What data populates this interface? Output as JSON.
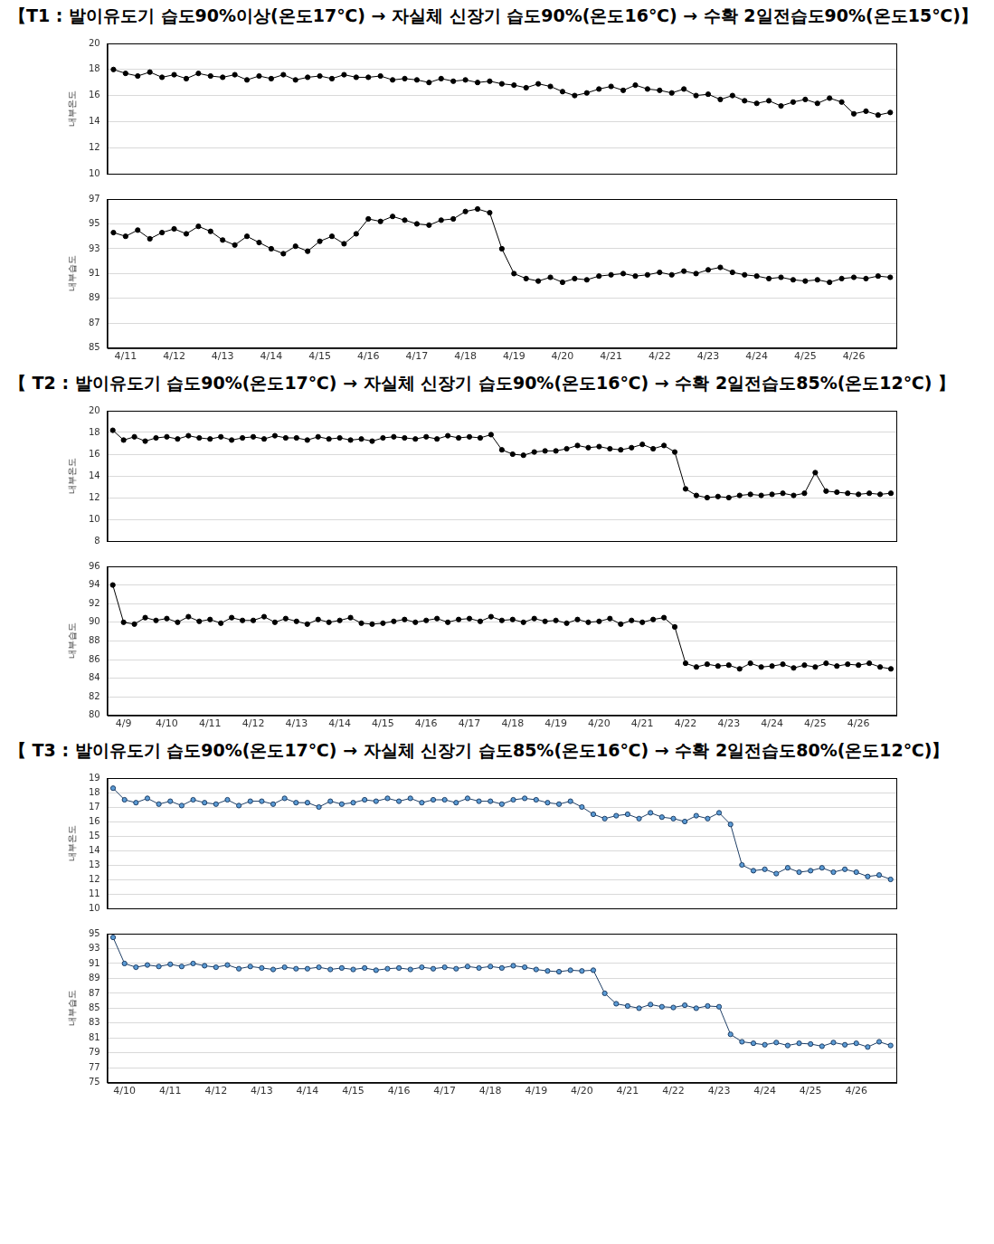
{
  "chart_data": [
    {
      "type": "line",
      "title": "【T1 : 발이유도기 습도90%이상(온도17℃) → 자실체 신장기 습도90%(온도16℃) → 수확 2일전습도90%(온도15℃)】",
      "y_label": "내부온도",
      "color": "#000000",
      "marker": "circle",
      "grid": "y",
      "tick_labels": "y",
      "ylim": [
        10,
        20
      ],
      "yticks": [
        10,
        12,
        14,
        16,
        18,
        20
      ],
      "categories": [
        null,
        "4/11",
        null,
        null,
        null,
        "4/12",
        null,
        null,
        null,
        "4/13",
        null,
        null,
        null,
        "4/14",
        null,
        null,
        null,
        "4/15",
        null,
        null,
        null,
        "4/16",
        null,
        null,
        null,
        "4/17",
        null,
        null,
        null,
        "4/18",
        null,
        null,
        null,
        "4/19",
        null,
        null,
        null,
        "4/20",
        null,
        null,
        null,
        "4/21",
        null,
        null,
        null,
        "4/22",
        null,
        null,
        null,
        "4/23",
        null,
        null,
        null,
        "4/24",
        null,
        null,
        null,
        "4/25",
        null,
        null,
        null,
        "4/26",
        null,
        null,
        null
      ],
      "values": [
        18.0,
        17.7,
        17.5,
        17.8,
        17.4,
        17.6,
        17.3,
        17.7,
        17.5,
        17.4,
        17.6,
        17.2,
        17.5,
        17.3,
        17.6,
        17.2,
        17.4,
        17.5,
        17.3,
        17.6,
        17.4,
        17.4,
        17.5,
        17.2,
        17.3,
        17.2,
        17.0,
        17.3,
        17.1,
        17.2,
        17.0,
        17.1,
        16.9,
        16.8,
        16.6,
        16.9,
        16.7,
        16.3,
        16.0,
        16.2,
        16.5,
        16.7,
        16.4,
        16.8,
        16.5,
        16.4,
        16.2,
        16.5,
        16.0,
        16.1,
        15.7,
        16.0,
        15.6,
        15.4,
        15.6,
        15.2,
        15.5,
        15.7,
        15.4,
        15.8,
        15.5,
        14.6,
        14.8,
        14.5,
        14.7
      ]
    },
    {
      "type": "line",
      "y_label": "내부습도",
      "color": "#000000",
      "marker": "circle",
      "grid": "y",
      "ylim": [
        85,
        97
      ],
      "yticks": [
        85,
        87,
        89,
        91,
        93,
        95,
        97
      ],
      "categories": [
        null,
        "4/11",
        null,
        null,
        null,
        "4/12",
        null,
        null,
        null,
        "4/13",
        null,
        null,
        null,
        "4/14",
        null,
        null,
        null,
        "4/15",
        null,
        null,
        null,
        "4/16",
        null,
        null,
        null,
        "4/17",
        null,
        null,
        null,
        "4/18",
        null,
        null,
        null,
        "4/19",
        null,
        null,
        null,
        "4/20",
        null,
        null,
        null,
        "4/21",
        null,
        null,
        null,
        "4/22",
        null,
        null,
        null,
        "4/23",
        null,
        null,
        null,
        "4/24",
        null,
        null,
        null,
        "4/25",
        null,
        null,
        null,
        "4/26",
        null,
        null,
        null
      ],
      "values": [
        94.3,
        94.0,
        94.5,
        93.8,
        94.3,
        94.6,
        94.2,
        94.8,
        94.4,
        93.7,
        93.3,
        94.0,
        93.5,
        93.0,
        92.6,
        93.2,
        92.8,
        93.6,
        94.0,
        93.4,
        94.2,
        95.4,
        95.2,
        95.6,
        95.3,
        95.0,
        94.9,
        95.3,
        95.4,
        96.0,
        96.2,
        95.9,
        93.0,
        91.0,
        90.6,
        90.4,
        90.7,
        90.3,
        90.6,
        90.5,
        90.8,
        90.9,
        91.0,
        90.8,
        90.9,
        91.1,
        90.9,
        91.2,
        91.0,
        91.3,
        91.5,
        91.1,
        90.9,
        90.8,
        90.6,
        90.7,
        90.5,
        90.4,
        90.5,
        90.3,
        90.6,
        90.7,
        90.6,
        90.8,
        90.7
      ]
    },
    {
      "type": "line",
      "title": "【 T2 : 발이유도기 습도90%(온도17℃) → 자실체 신장기 습도90%(온도16℃) → 수확 2일전습도85%(온도12℃) 】",
      "y_label": "내부온도",
      "color": "#000000",
      "marker": "circle",
      "grid": "y",
      "tick_labels": "y",
      "ylim": [
        8,
        20
      ],
      "yticks": [
        8,
        10,
        12,
        14,
        16,
        18,
        20
      ],
      "categories": [
        null,
        "4/9",
        null,
        null,
        null,
        "4/10",
        null,
        null,
        null,
        "4/11",
        null,
        null,
        null,
        "4/12",
        null,
        null,
        null,
        "4/13",
        null,
        null,
        null,
        "4/14",
        null,
        null,
        null,
        "4/15",
        null,
        null,
        null,
        "4/16",
        null,
        null,
        null,
        "4/17",
        null,
        null,
        null,
        "4/18",
        null,
        null,
        null,
        "4/19",
        null,
        null,
        null,
        "4/20",
        null,
        null,
        null,
        "4/21",
        null,
        null,
        null,
        "4/22",
        null,
        null,
        null,
        "4/23",
        null,
        null,
        null,
        "4/24",
        null,
        null,
        null,
        "4/25",
        null,
        null,
        null,
        "4/26",
        null,
        null,
        null
      ],
      "values": [
        18.2,
        17.3,
        17.6,
        17.2,
        17.5,
        17.6,
        17.4,
        17.7,
        17.5,
        17.4,
        17.6,
        17.3,
        17.5,
        17.6,
        17.4,
        17.7,
        17.5,
        17.5,
        17.3,
        17.6,
        17.4,
        17.5,
        17.3,
        17.4,
        17.2,
        17.5,
        17.6,
        17.5,
        17.4,
        17.6,
        17.4,
        17.7,
        17.5,
        17.6,
        17.5,
        17.8,
        16.4,
        16.0,
        15.9,
        16.2,
        16.3,
        16.3,
        16.5,
        16.8,
        16.6,
        16.7,
        16.5,
        16.4,
        16.6,
        16.9,
        16.5,
        16.8,
        16.2,
        12.8,
        12.2,
        12.0,
        12.1,
        12.0,
        12.2,
        12.3,
        12.2,
        12.3,
        12.4,
        12.2,
        12.4,
        14.3,
        12.6,
        12.5,
        12.4,
        12.3,
        12.4,
        12.3,
        12.4
      ]
    },
    {
      "type": "line",
      "y_label": "내부습도",
      "color": "#000000",
      "marker": "circle",
      "grid": "y",
      "ylim": [
        80,
        96
      ],
      "yticks": [
        80,
        82,
        84,
        86,
        88,
        90,
        92,
        94,
        96
      ],
      "categories": [
        null,
        "4/9",
        null,
        null,
        null,
        "4/10",
        null,
        null,
        null,
        "4/11",
        null,
        null,
        null,
        "4/12",
        null,
        null,
        null,
        "4/13",
        null,
        null,
        null,
        "4/14",
        null,
        null,
        null,
        "4/15",
        null,
        null,
        null,
        "4/16",
        null,
        null,
        null,
        "4/17",
        null,
        null,
        null,
        "4/18",
        null,
        null,
        null,
        "4/19",
        null,
        null,
        null,
        "4/20",
        null,
        null,
        null,
        "4/21",
        null,
        null,
        null,
        "4/22",
        null,
        null,
        null,
        "4/23",
        null,
        null,
        null,
        "4/24",
        null,
        null,
        null,
        "4/25",
        null,
        null,
        null,
        "4/26",
        null,
        null,
        null
      ],
      "values": [
        94.0,
        90.0,
        89.8,
        90.5,
        90.2,
        90.4,
        90.0,
        90.6,
        90.1,
        90.3,
        89.9,
        90.5,
        90.2,
        90.2,
        90.6,
        90.0,
        90.4,
        90.1,
        89.8,
        90.3,
        90.0,
        90.2,
        90.5,
        89.9,
        89.8,
        89.9,
        90.1,
        90.3,
        90.0,
        90.2,
        90.4,
        90.0,
        90.3,
        90.4,
        90.1,
        90.6,
        90.2,
        90.3,
        90.0,
        90.4,
        90.1,
        90.2,
        89.9,
        90.3,
        90.0,
        90.1,
        90.4,
        89.8,
        90.2,
        90.0,
        90.3,
        90.5,
        89.5,
        85.6,
        85.2,
        85.5,
        85.3,
        85.4,
        85.0,
        85.6,
        85.2,
        85.3,
        85.5,
        85.1,
        85.4,
        85.2,
        85.6,
        85.3,
        85.5,
        85.4,
        85.6,
        85.2,
        85.0
      ]
    },
    {
      "type": "line",
      "title": "【 T3 : 발이유도기 습도90%(온도17℃) → 자실체 신장기 습도85%(온도16℃) → 수확 2일전습도80%(온도12℃)】",
      "y_label": "내부온도",
      "color": "#5b9bd5",
      "marker": "circle",
      "grid": "y",
      "tick_labels": "y",
      "ylim": [
        10,
        19
      ],
      "yticks": [
        10,
        11,
        12,
        13,
        14,
        15,
        16,
        17,
        18,
        19
      ],
      "categories": [
        null,
        "4/10",
        null,
        null,
        null,
        "4/11",
        null,
        null,
        null,
        "4/12",
        null,
        null,
        null,
        "4/13",
        null,
        null,
        null,
        "4/14",
        null,
        null,
        null,
        "4/15",
        null,
        null,
        null,
        "4/16",
        null,
        null,
        null,
        "4/17",
        null,
        null,
        null,
        "4/18",
        null,
        null,
        null,
        "4/19",
        null,
        null,
        null,
        "4/20",
        null,
        null,
        null,
        "4/21",
        null,
        null,
        null,
        "4/22",
        null,
        null,
        null,
        "4/23",
        null,
        null,
        null,
        "4/24",
        null,
        null,
        null,
        "4/25",
        null,
        null,
        null,
        "4/26",
        null,
        null,
        null
      ],
      "values": [
        18.3,
        17.5,
        17.3,
        17.6,
        17.2,
        17.4,
        17.1,
        17.5,
        17.3,
        17.2,
        17.5,
        17.1,
        17.4,
        17.4,
        17.2,
        17.6,
        17.3,
        17.3,
        17.0,
        17.4,
        17.2,
        17.3,
        17.5,
        17.4,
        17.6,
        17.4,
        17.6,
        17.3,
        17.5,
        17.5,
        17.3,
        17.6,
        17.4,
        17.4,
        17.2,
        17.5,
        17.6,
        17.5,
        17.3,
        17.2,
        17.4,
        17.0,
        16.5,
        16.2,
        16.4,
        16.5,
        16.2,
        16.6,
        16.3,
        16.2,
        16.0,
        16.4,
        16.2,
        16.6,
        15.8,
        13.0,
        12.6,
        12.7,
        12.4,
        12.8,
        12.5,
        12.6,
        12.8,
        12.5,
        12.7,
        12.5,
        12.2,
        12.3,
        12.0
      ]
    },
    {
      "type": "line",
      "y_label": "내부습도",
      "color": "#5b9bd5",
      "marker": "circle",
      "grid": "y",
      "ylim": [
        75,
        95
      ],
      "yticks": [
        75,
        77,
        79,
        81,
        83,
        85,
        87,
        89,
        91,
        93,
        95
      ],
      "categories": [
        null,
        "4/10",
        null,
        null,
        null,
        "4/11",
        null,
        null,
        null,
        "4/12",
        null,
        null,
        null,
        "4/13",
        null,
        null,
        null,
        "4/14",
        null,
        null,
        null,
        "4/15",
        null,
        null,
        null,
        "4/16",
        null,
        null,
        null,
        "4/17",
        null,
        null,
        null,
        "4/18",
        null,
        null,
        null,
        "4/19",
        null,
        null,
        null,
        "4/20",
        null,
        null,
        null,
        "4/21",
        null,
        null,
        null,
        "4/22",
        null,
        null,
        null,
        "4/23",
        null,
        null,
        null,
        "4/24",
        null,
        null,
        null,
        "4/25",
        null,
        null,
        null,
        "4/26",
        null,
        null,
        null
      ],
      "values": [
        94.5,
        91.0,
        90.5,
        90.8,
        90.6,
        90.9,
        90.6,
        91.0,
        90.7,
        90.5,
        90.8,
        90.3,
        90.6,
        90.4,
        90.2,
        90.5,
        90.3,
        90.3,
        90.5,
        90.2,
        90.4,
        90.2,
        90.4,
        90.1,
        90.3,
        90.4,
        90.2,
        90.5,
        90.3,
        90.5,
        90.3,
        90.6,
        90.4,
        90.6,
        90.4,
        90.7,
        90.5,
        90.2,
        90.0,
        89.9,
        90.1,
        90.0,
        90.1,
        87.0,
        85.6,
        85.3,
        85.0,
        85.5,
        85.2,
        85.1,
        85.4,
        85.0,
        85.3,
        85.2,
        81.5,
        80.5,
        80.3,
        80.1,
        80.4,
        80.0,
        80.3,
        80.2,
        79.9,
        80.4,
        80.1,
        80.3,
        79.8,
        80.5,
        80.0
      ]
    }
  ]
}
